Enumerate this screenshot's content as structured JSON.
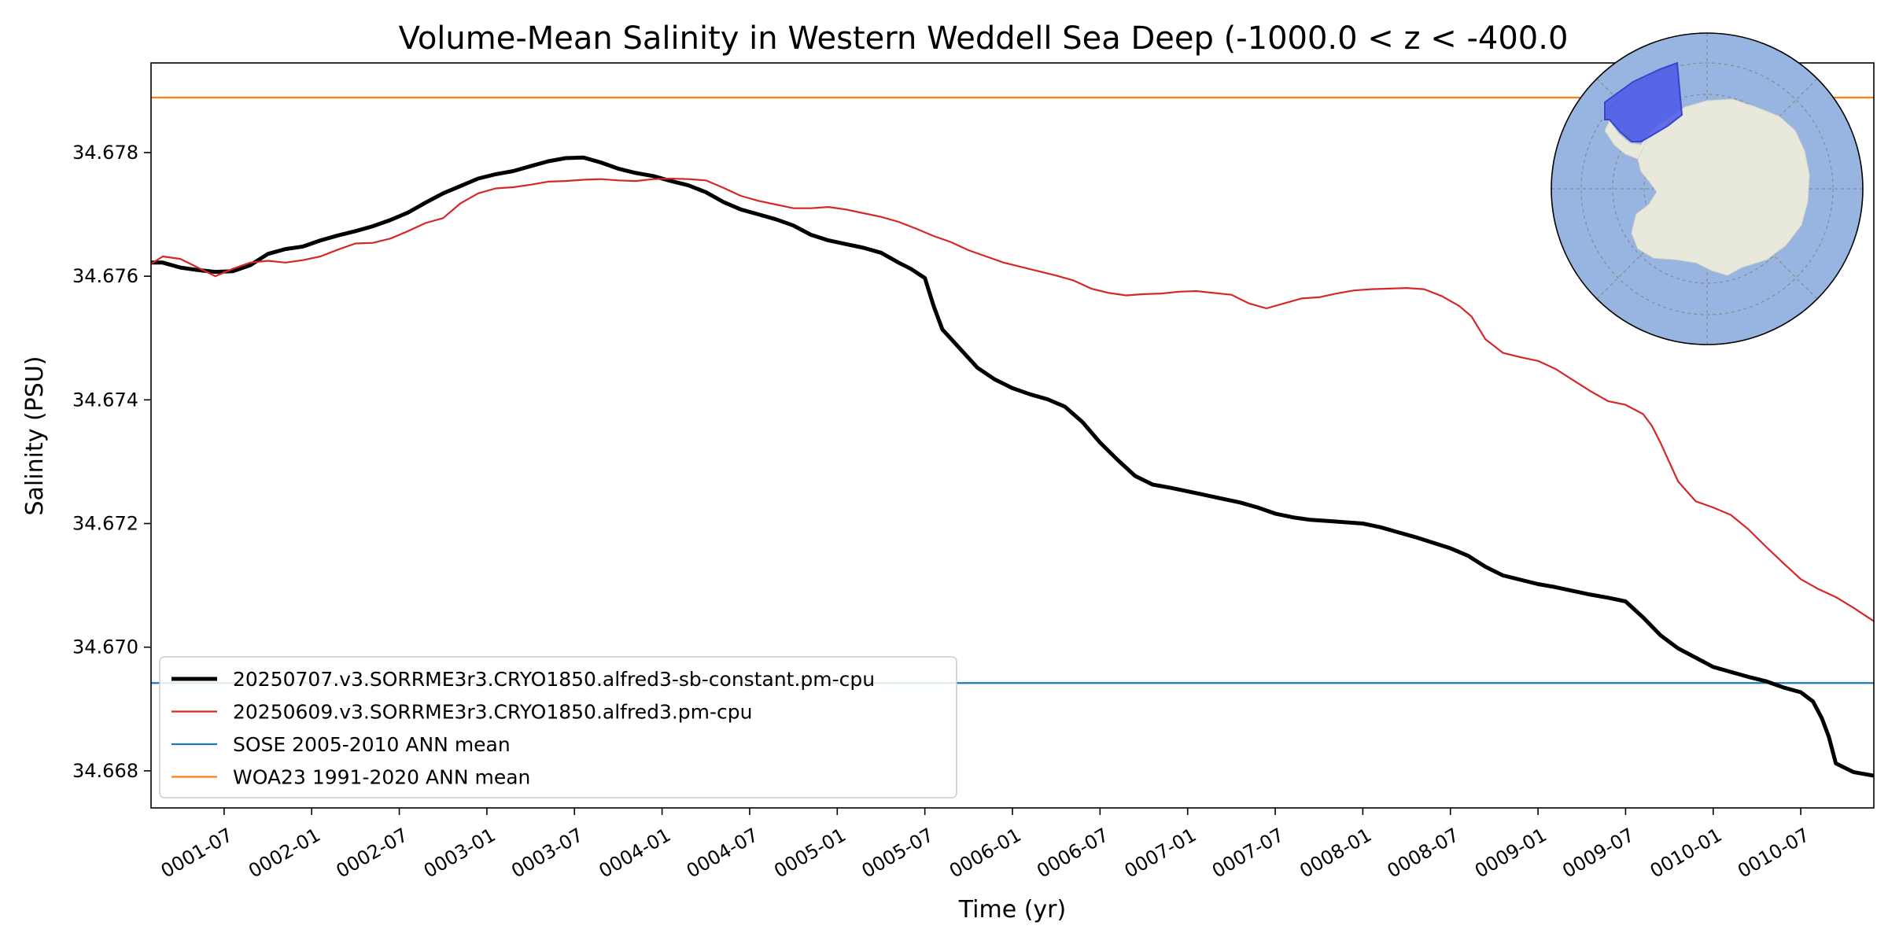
{
  "chart_data": {
    "type": "line",
    "title": "Volume-Mean Salinity in Western Weddell Sea Deep (-1000.0 < z < -400.0",
    "xlabel": "Time (yr)",
    "ylabel": "Salinity (PSU)",
    "xlim": [
      1.083,
      10.917
    ],
    "ylim": [
      34.6674,
      34.67945
    ],
    "x_ticks": [
      {
        "x": 1.5,
        "label": "0001-07"
      },
      {
        "x": 2.0,
        "label": "0002-01"
      },
      {
        "x": 2.5,
        "label": "0002-07"
      },
      {
        "x": 3.0,
        "label": "0003-01"
      },
      {
        "x": 3.5,
        "label": "0003-07"
      },
      {
        "x": 4.0,
        "label": "0004-01"
      },
      {
        "x": 4.5,
        "label": "0004-07"
      },
      {
        "x": 5.0,
        "label": "0005-01"
      },
      {
        "x": 5.5,
        "label": "0005-07"
      },
      {
        "x": 6.0,
        "label": "0006-01"
      },
      {
        "x": 6.5,
        "label": "0006-07"
      },
      {
        "x": 7.0,
        "label": "0007-01"
      },
      {
        "x": 7.5,
        "label": "0007-07"
      },
      {
        "x": 8.0,
        "label": "0008-01"
      },
      {
        "x": 8.5,
        "label": "0008-07"
      },
      {
        "x": 9.0,
        "label": "0009-01"
      },
      {
        "x": 9.5,
        "label": "0009-07"
      },
      {
        "x": 10.0,
        "label": "0010-01"
      },
      {
        "x": 10.5,
        "label": "0010-07"
      }
    ],
    "y_ticks": [
      {
        "y": 34.668,
        "label": "34.668"
      },
      {
        "y": 34.67,
        "label": "34.670"
      },
      {
        "y": 34.672,
        "label": "34.672"
      },
      {
        "y": 34.674,
        "label": "34.674"
      },
      {
        "y": 34.676,
        "label": "34.676"
      },
      {
        "y": 34.678,
        "label": "34.678"
      }
    ],
    "grid": false,
    "legend_position": "lower-left",
    "series": [
      {
        "name": "20250707.v3.SORRME3r3.CRYO1850.alfred3-sb-constant.pm-cpu",
        "color": "#000000",
        "style": "thick",
        "x": [
          1.083,
          1.15,
          1.25,
          1.35,
          1.45,
          1.55,
          1.65,
          1.75,
          1.85,
          1.95,
          2.05,
          2.15,
          2.25,
          2.35,
          2.45,
          2.55,
          2.65,
          2.75,
          2.85,
          2.95,
          3.05,
          3.15,
          3.25,
          3.35,
          3.45,
          3.55,
          3.65,
          3.75,
          3.85,
          3.95,
          4.05,
          4.15,
          4.25,
          4.35,
          4.45,
          4.55,
          4.65,
          4.75,
          4.85,
          4.95,
          5.05,
          5.15,
          5.25,
          5.35,
          5.42,
          5.5,
          5.55,
          5.6,
          5.7,
          5.8,
          5.9,
          6.0,
          6.1,
          6.2,
          6.3,
          6.4,
          6.5,
          6.6,
          6.7,
          6.8,
          6.9,
          7.0,
          7.1,
          7.2,
          7.3,
          7.4,
          7.5,
          7.6,
          7.7,
          7.8,
          7.9,
          8.0,
          8.1,
          8.2,
          8.3,
          8.4,
          8.5,
          8.6,
          8.7,
          8.8,
          8.9,
          9.0,
          9.1,
          9.2,
          9.3,
          9.4,
          9.5,
          9.6,
          9.7,
          9.8,
          9.9,
          10.0,
          10.1,
          10.2,
          10.3,
          10.4,
          10.5,
          10.57,
          10.62,
          10.66,
          10.7,
          10.8,
          10.917
        ],
        "values": [
          34.67622,
          34.67622,
          34.67614,
          34.6761,
          34.67607,
          34.67608,
          34.67618,
          34.67636,
          34.67644,
          34.67648,
          34.67658,
          34.67666,
          34.67673,
          34.67681,
          34.67691,
          34.67703,
          34.67719,
          34.67734,
          34.67746,
          34.67758,
          34.67765,
          34.6777,
          34.67778,
          34.67786,
          34.67791,
          34.67792,
          34.67784,
          34.67774,
          34.67767,
          34.67762,
          34.67754,
          34.67747,
          34.67736,
          34.6772,
          34.67708,
          34.677,
          34.67692,
          34.67682,
          34.67667,
          34.67658,
          34.67652,
          34.67646,
          34.67638,
          34.67622,
          34.67612,
          34.67597,
          34.67552,
          34.67514,
          34.67483,
          34.67452,
          34.67433,
          34.67419,
          34.67409,
          34.67401,
          34.67389,
          34.67364,
          34.67331,
          34.67303,
          34.67277,
          34.67263,
          34.67258,
          34.67252,
          34.67246,
          34.6724,
          34.67234,
          34.67226,
          34.67216,
          34.6721,
          34.67206,
          34.67204,
          34.67202,
          34.672,
          34.67194,
          34.67186,
          34.67178,
          34.67169,
          34.6716,
          34.67148,
          34.6713,
          34.67116,
          34.67109,
          34.67102,
          34.67097,
          34.67091,
          34.67085,
          34.6708,
          34.67074,
          34.67048,
          34.67019,
          34.66998,
          34.66983,
          34.66968,
          34.6696,
          34.66952,
          34.66945,
          34.66935,
          34.66927,
          34.66912,
          34.66885,
          34.66855,
          34.66812,
          34.66798,
          34.66792
        ]
      },
      {
        "name": "20250609.v3.SORRME3r3.CRYO1850.alfred3.pm-cpu",
        "color": "#d62728",
        "style": "thin",
        "x": [
          1.083,
          1.15,
          1.25,
          1.35,
          1.45,
          1.55,
          1.65,
          1.75,
          1.85,
          1.95,
          2.05,
          2.15,
          2.25,
          2.35,
          2.45,
          2.55,
          2.65,
          2.75,
          2.85,
          2.95,
          3.05,
          3.15,
          3.25,
          3.35,
          3.45,
          3.55,
          3.65,
          3.75,
          3.85,
          3.95,
          4.05,
          4.15,
          4.25,
          4.35,
          4.45,
          4.55,
          4.65,
          4.75,
          4.85,
          4.95,
          5.05,
          5.15,
          5.25,
          5.35,
          5.45,
          5.55,
          5.65,
          5.75,
          5.85,
          5.95,
          6.05,
          6.15,
          6.25,
          6.35,
          6.45,
          6.55,
          6.65,
          6.75,
          6.85,
          6.95,
          7.05,
          7.15,
          7.25,
          7.35,
          7.45,
          7.55,
          7.65,
          7.75,
          7.85,
          7.95,
          8.05,
          8.15,
          8.25,
          8.35,
          8.45,
          8.55,
          8.62,
          8.7,
          8.8,
          8.9,
          9.0,
          9.1,
          9.2,
          9.3,
          9.4,
          9.5,
          9.6,
          9.65,
          9.7,
          9.8,
          9.9,
          10.0,
          10.1,
          10.2,
          10.3,
          10.4,
          10.5,
          10.6,
          10.7,
          10.8,
          10.917
        ],
        "values": [
          34.6762,
          34.67632,
          34.67628,
          34.67614,
          34.676,
          34.67612,
          34.67622,
          34.67625,
          34.67622,
          34.67626,
          34.67632,
          34.67643,
          34.67653,
          34.67654,
          34.67661,
          34.67673,
          34.67686,
          34.67694,
          34.67718,
          34.67734,
          34.67742,
          34.67744,
          34.67748,
          34.67753,
          34.67754,
          34.67756,
          34.67757,
          34.67755,
          34.67754,
          34.67757,
          34.67758,
          34.67757,
          34.67755,
          34.67743,
          34.6773,
          34.67722,
          34.67716,
          34.6771,
          34.6771,
          34.67712,
          34.67708,
          34.67702,
          34.67696,
          34.67688,
          34.67677,
          34.67665,
          34.67655,
          34.67642,
          34.67632,
          34.67622,
          34.67615,
          34.67608,
          34.67601,
          34.67593,
          34.6758,
          34.67573,
          34.67569,
          34.67571,
          34.67572,
          34.67575,
          34.67576,
          34.67573,
          34.6757,
          34.67556,
          34.67548,
          34.67556,
          34.67564,
          34.67566,
          34.67572,
          34.67577,
          34.67579,
          34.6758,
          34.67581,
          34.67579,
          34.67568,
          34.67552,
          34.67535,
          34.67498,
          34.67476,
          34.67469,
          34.67463,
          34.6745,
          34.67432,
          34.67414,
          34.67398,
          34.67392,
          34.67377,
          34.67358,
          34.6733,
          34.67268,
          34.67236,
          34.67226,
          34.67214,
          34.67191,
          34.67163,
          34.67136,
          34.6711,
          34.67094,
          34.67081,
          34.67064,
          34.67042
        ]
      },
      {
        "name": "SOSE 2005-2010 ANN mean",
        "color": "#1f77b4",
        "style": "hline",
        "value": 34.66942
      },
      {
        "name": "WOA23 1991-2020 ANN mean",
        "color": "#ff7f0e",
        "style": "hline",
        "value": 34.67889
      }
    ]
  },
  "inset_map": {
    "type": "south-polar-stereographic",
    "ocean_color": "#98b4e0",
    "land_color": "#efeedb",
    "region_color": "#4b57e8"
  }
}
